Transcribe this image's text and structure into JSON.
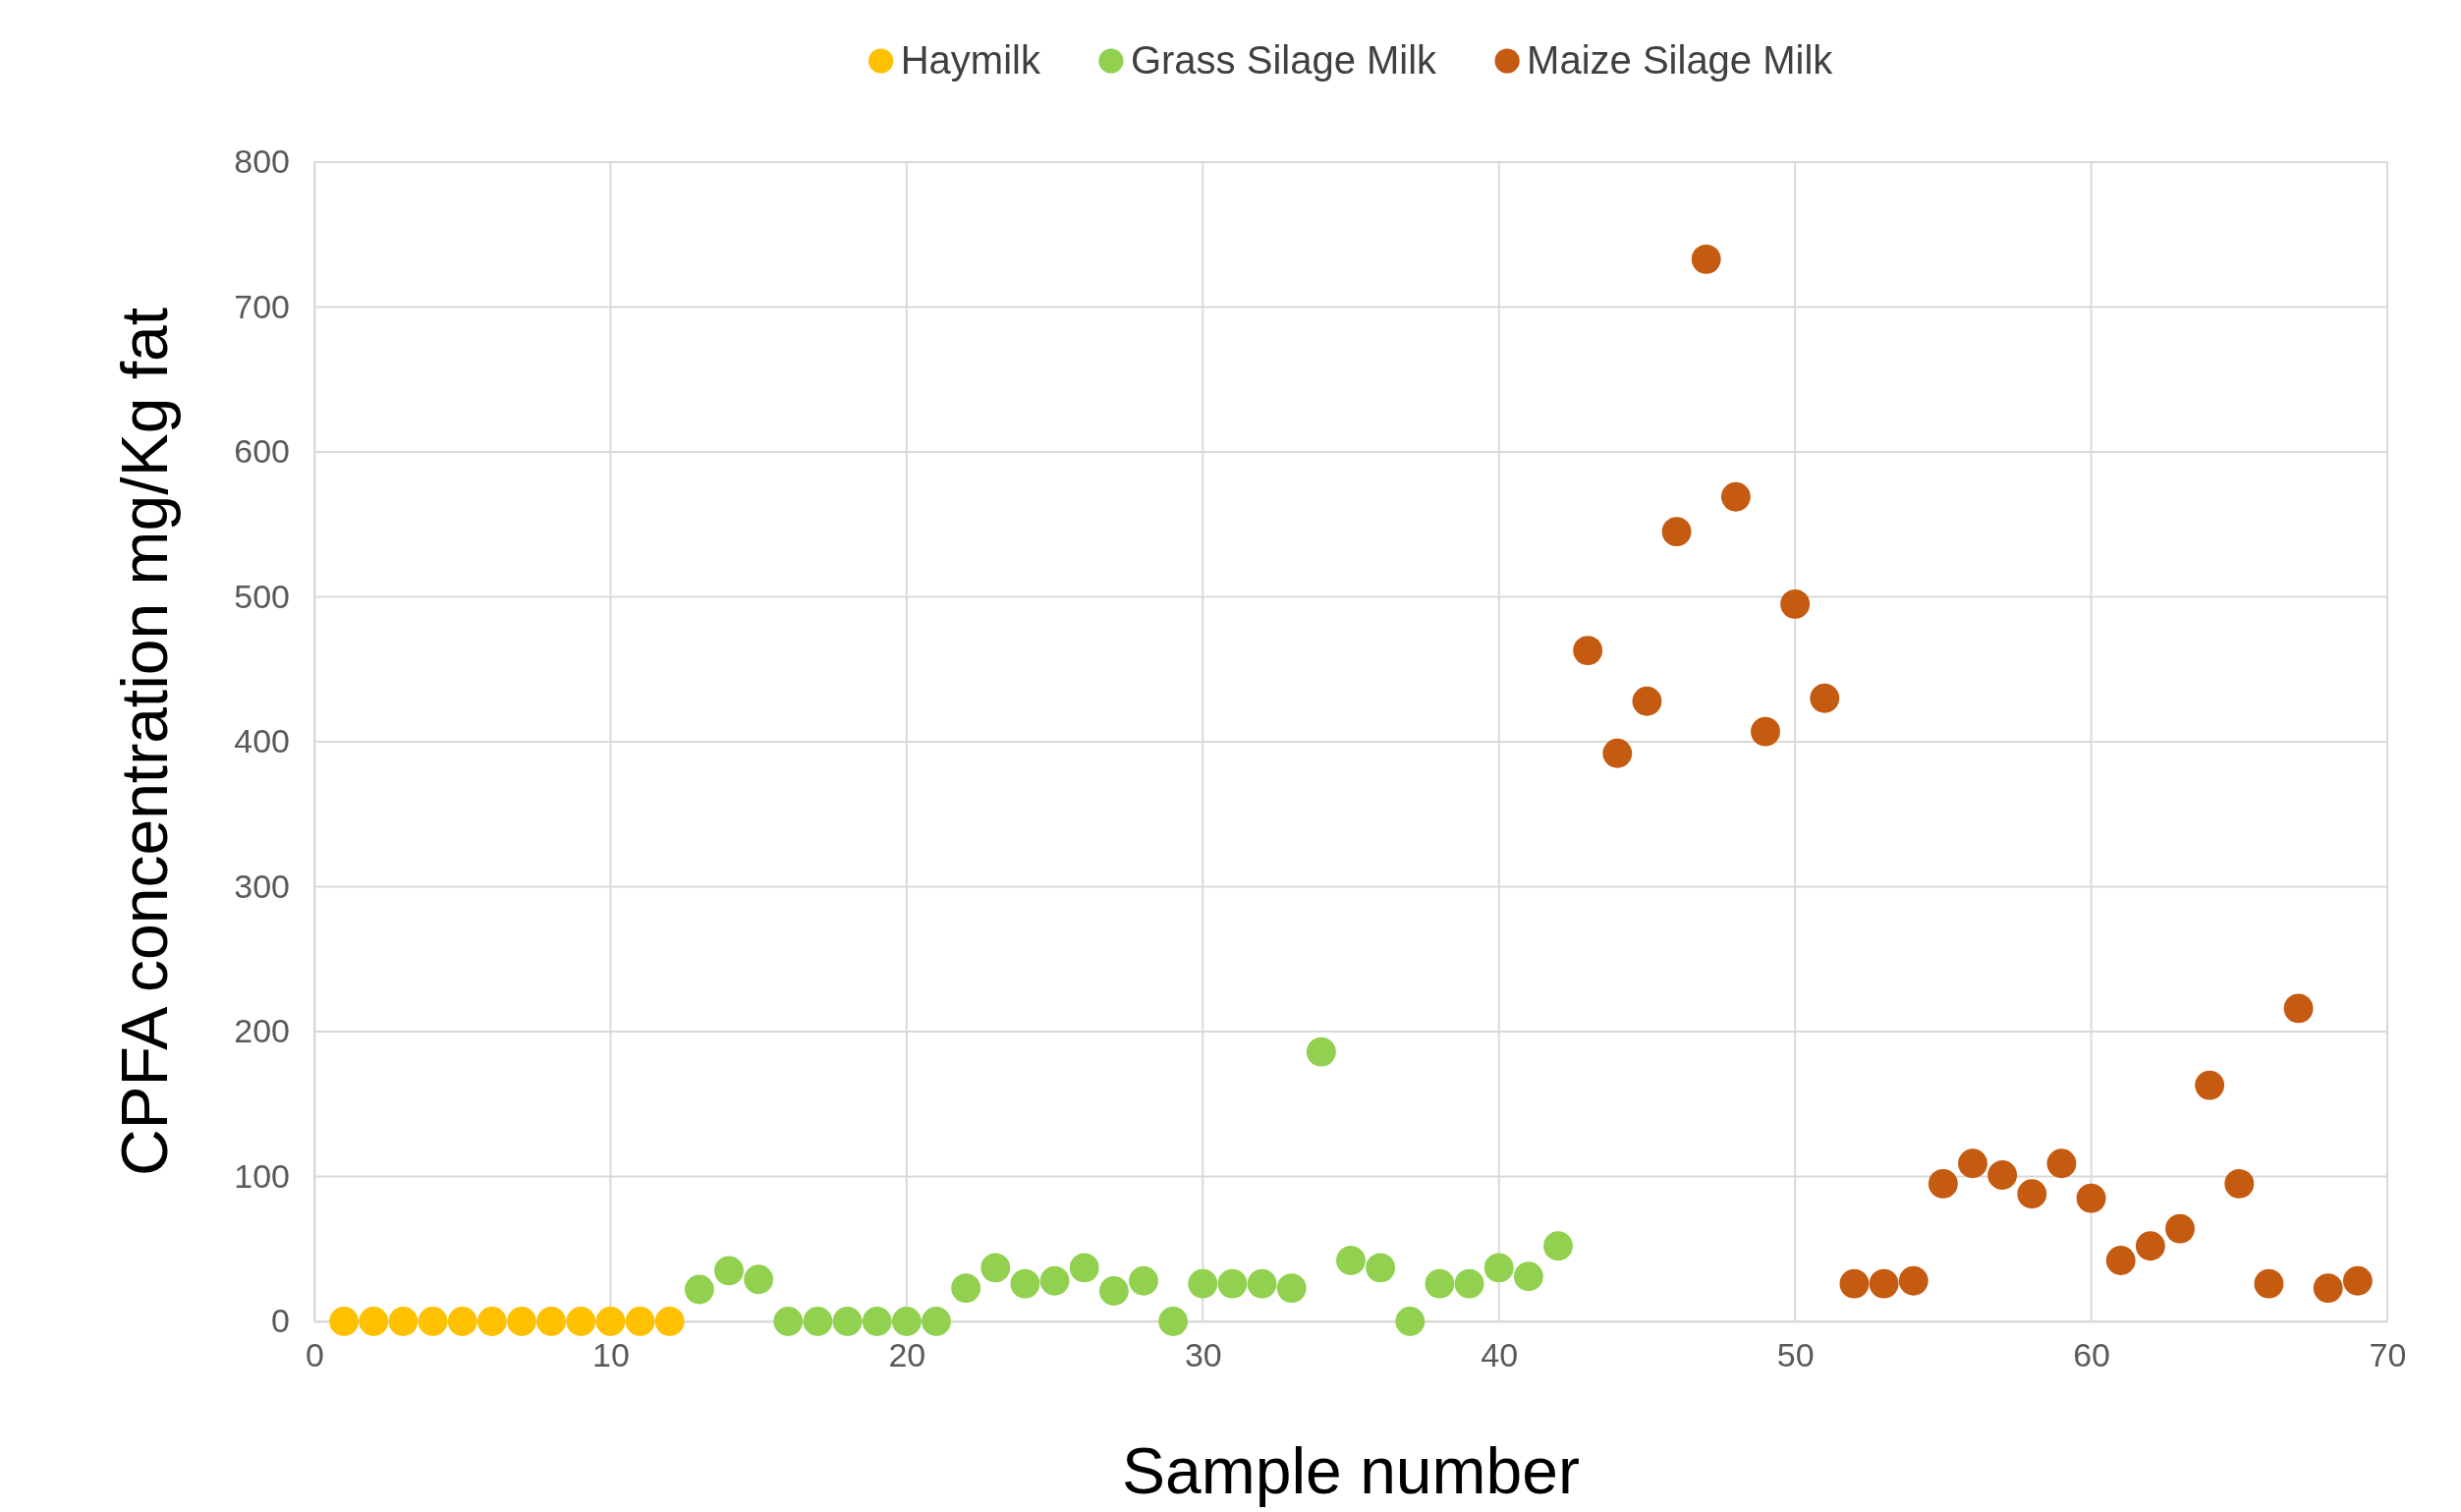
{
  "chart_data": {
    "type": "scatter",
    "xlabel": "Sample number",
    "ylabel": "CPFA concentration mg/Kg fat",
    "xlim": [
      0,
      70
    ],
    "xticks": [
      0,
      10,
      20,
      30,
      40,
      50,
      60,
      70
    ],
    "ylim": [
      0,
      800
    ],
    "yticks": [
      0,
      100,
      200,
      300,
      400,
      500,
      600,
      700,
      800
    ],
    "grid": true,
    "legend": "top",
    "marker": "circle",
    "series": [
      {
        "name": "Haymilk",
        "color": "#ffc000",
        "x": [
          1,
          2,
          3,
          4,
          5,
          6,
          7,
          8,
          9,
          10,
          11,
          12
        ],
        "values": [
          0,
          0,
          0,
          0,
          0,
          0,
          0,
          0,
          0,
          0,
          0,
          0
        ]
      },
      {
        "name": "Grass Silage Milk",
        "color": "#92d050",
        "x": [
          13,
          14,
          15,
          16,
          17,
          18,
          19,
          20,
          21,
          22,
          23,
          24,
          25,
          26,
          27,
          28,
          29,
          30,
          31,
          32,
          33,
          34,
          35,
          36,
          37,
          38,
          39,
          40,
          41,
          42
        ],
        "values": [
          22,
          35,
          29,
          0,
          0,
          0,
          0,
          0,
          0,
          23,
          37,
          26,
          28,
          37,
          21,
          28,
          0,
          26,
          26,
          26,
          23,
          186,
          42,
          37,
          0,
          26,
          26,
          37,
          31,
          52
        ]
      },
      {
        "name": "Maize Silage Milk",
        "color": "#c55a11",
        "x": [
          43,
          44,
          45,
          46,
          47,
          48,
          49,
          50,
          51,
          52,
          53,
          54,
          55,
          56,
          57,
          58,
          59,
          60,
          61,
          62,
          63,
          64,
          65,
          66,
          67,
          68,
          69
        ],
        "values": [
          463,
          392,
          428,
          545,
          733,
          569,
          407,
          495,
          430,
          26,
          26,
          28,
          95,
          109,
          101,
          88,
          109,
          85,
          42,
          52,
          64,
          163,
          95,
          26,
          216,
          23,
          28
        ]
      }
    ]
  }
}
